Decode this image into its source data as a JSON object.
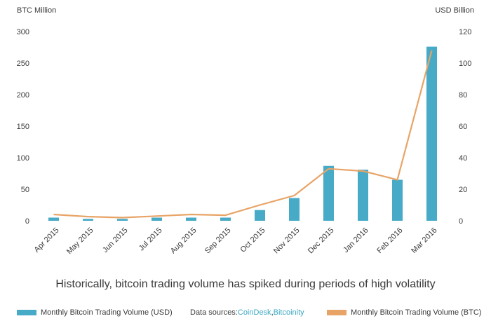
{
  "chart_data": {
    "type": "bar",
    "left_axis_label": "BTC Million",
    "right_axis_label": "USD Billion",
    "left_ylim": [
      0,
      300
    ],
    "right_ylim": [
      0,
      120
    ],
    "left_ticks": [
      "0",
      "50",
      "100",
      "150",
      "200",
      "250",
      "300"
    ],
    "right_ticks": [
      "0",
      "20",
      "40",
      "60",
      "80",
      "100",
      "120"
    ],
    "categories": [
      "Apr 2015",
      "May 2015",
      "Jun 2015",
      "Jul 2015",
      "Aug 2015",
      "Sep 2015",
      "Oct 2015",
      "Nov 2015",
      "Dec 2015",
      "Jan 2016",
      "Feb 2016",
      "Mar 2016"
    ],
    "series": [
      {
        "name": "Monthly Bitcoin Trading Volume (USD)",
        "kind": "bar",
        "axis": "left",
        "color": "#47aac6",
        "values": [
          5,
          3,
          3,
          5,
          5,
          5,
          17,
          36,
          87,
          81,
          65,
          276
        ]
      },
      {
        "name": "Monthly Bitcoin Trading Volume (BTC)",
        "kind": "line",
        "axis": "right",
        "color": "#e8a467",
        "values": [
          4,
          2.6,
          2,
          3,
          4,
          3.5,
          10,
          16,
          33,
          31.5,
          26,
          108
        ]
      }
    ],
    "grid": false,
    "caption": "Historically, bitcoin trading volume has spiked during periods of high volatility"
  },
  "legend": {
    "bar_label": "Monthly Bitcoin Trading Volume (USD)",
    "line_label": "Monthly Bitcoin Trading Volume (BTC)",
    "sources_prefix": "Data sources: ",
    "source_1": "CoinDesk",
    "source_sep": ", ",
    "source_2": "Bitcoinity"
  }
}
